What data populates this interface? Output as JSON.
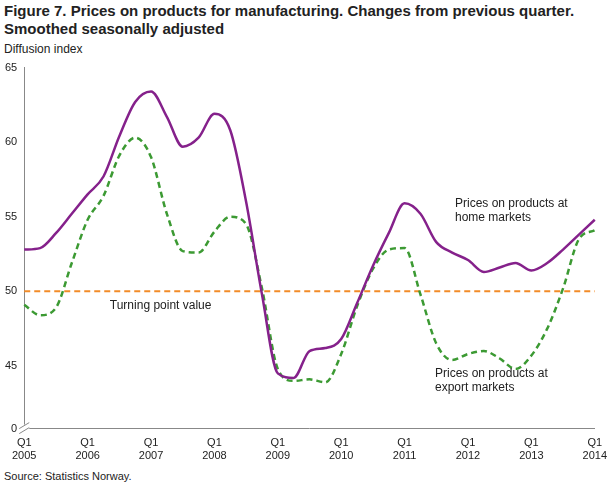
{
  "chart_data": {
    "type": "line",
    "title": "Figure 7. Prices on products for manufacturing. Changes from previous quarter. Smoothed seasonally adjusted",
    "y_label": "Diffusion index",
    "source": "Source: Statistics Norway.",
    "categories": [
      "Q1 2005",
      null,
      null,
      null,
      "Q1 2006",
      null,
      null,
      null,
      "Q1 2007",
      null,
      null,
      null,
      "Q1 2008",
      null,
      null,
      null,
      "Q1 2009",
      null,
      null,
      null,
      "Q1 2010",
      null,
      null,
      null,
      "Q1 2011",
      null,
      null,
      null,
      "Q1 2012",
      null,
      null,
      null,
      "Q1 2013",
      null,
      null,
      null,
      "Q1 2014"
    ],
    "series": [
      {
        "name": "Prices on products at home markets",
        "color": "#85218b",
        "line_style": "solid",
        "marker": "none",
        "values": [
          52.8,
          52.9,
          53.9,
          55.2,
          56.5,
          57.7,
          60.4,
          62.7,
          63.4,
          61.7,
          59.7,
          60.3,
          61.9,
          60.8,
          56.0,
          49.8,
          44.5,
          44.2,
          46.0,
          46.2,
          46.8,
          49.2,
          51.7,
          53.9,
          55.9,
          55.2,
          53.3,
          52.6,
          52.1,
          51.3,
          51.6,
          51.9,
          51.4,
          51.9,
          52.8,
          53.8,
          54.8
        ]
      },
      {
        "name": "Prices on products at export markets",
        "color": "#3c9a33",
        "line_style": "dashed",
        "marker": "none",
        "values": [
          49.1,
          48.4,
          48.9,
          51.9,
          54.8,
          56.4,
          59.1,
          60.3,
          59.0,
          55.2,
          52.7,
          52.6,
          54.0,
          55.0,
          54.5,
          50.2,
          44.8,
          44.0,
          44.1,
          43.9,
          45.8,
          49.0,
          51.5,
          52.8,
          52.9,
          49.8,
          46.5,
          45.4,
          45.8,
          46.0,
          45.5,
          44.8,
          45.7,
          47.5,
          50.2,
          53.5,
          54.1
        ]
      }
    ],
    "ylim": [
      0,
      65
    ],
    "yticks": [
      0,
      45,
      50,
      55,
      60,
      65
    ],
    "grid": false,
    "reference_lines": [
      {
        "value": 50,
        "label": "Turning point value",
        "color": "#f28c28",
        "line_style": "dashed"
      }
    ]
  }
}
